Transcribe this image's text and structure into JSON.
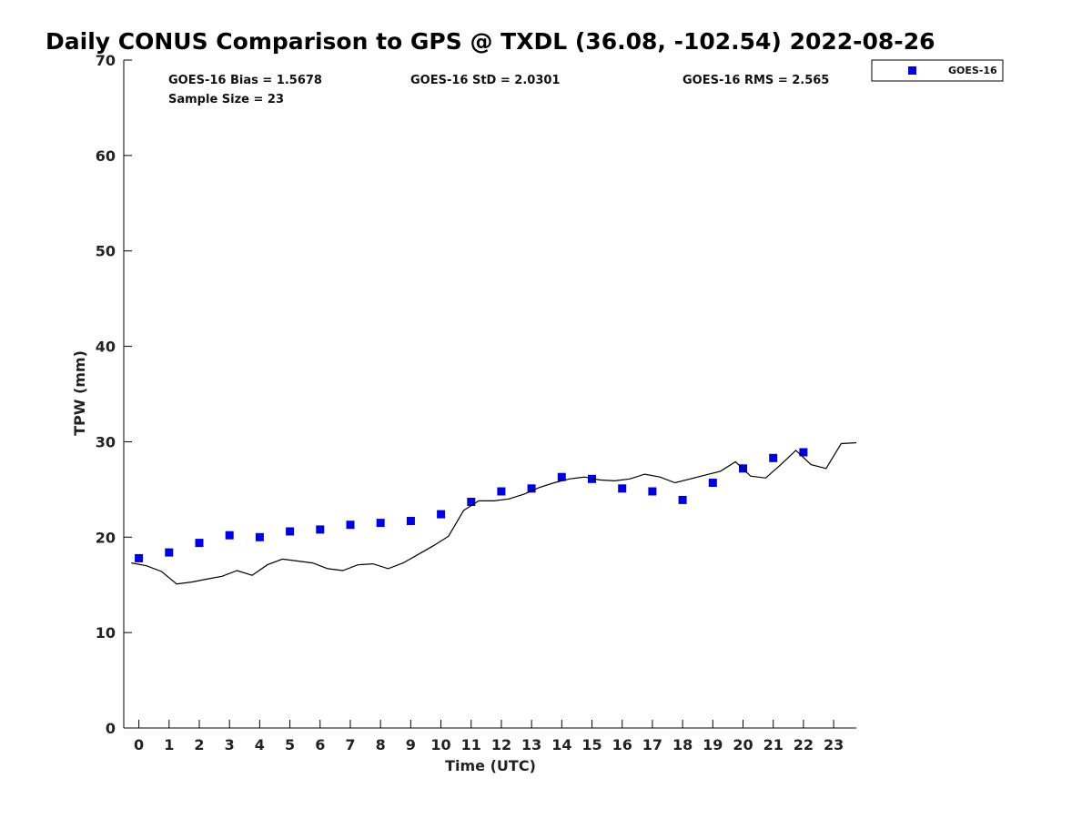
{
  "chart_data": {
    "type": "scatter",
    "title": "Daily CONUS Comparison to GPS @ TXDL (36.08, -102.54) 2022-08-26",
    "xlabel": "Time (UTC)",
    "ylabel": "TPW (mm)",
    "xlim": [
      -0.5,
      23.75
    ],
    "ylim": [
      0,
      70
    ],
    "xticks": [
      0,
      1,
      2,
      3,
      4,
      5,
      6,
      7,
      8,
      9,
      10,
      11,
      12,
      13,
      14,
      15,
      16,
      17,
      18,
      19,
      20,
      21,
      22,
      23
    ],
    "yticks": [
      0,
      10,
      20,
      30,
      40,
      50,
      60,
      70
    ],
    "grid": false,
    "legend_position": "top-right-outside",
    "stats": {
      "bias": "GOES-16 Bias = 1.5678",
      "std": "GOES-16 StD = 2.0301",
      "rms": "GOES-16 RMS = 2.565",
      "sample_size": "Sample Size = 23"
    },
    "series": [
      {
        "name": "GOES-16",
        "kind": "marker",
        "color": "#0000dd",
        "x": [
          0,
          1,
          2,
          3,
          4,
          5,
          6,
          7,
          8,
          9,
          10,
          11,
          12,
          13,
          14,
          15,
          16,
          17,
          18,
          19,
          20,
          21,
          22
        ],
        "y": [
          17.8,
          18.4,
          19.4,
          20.2,
          20.0,
          20.6,
          20.8,
          21.3,
          21.5,
          21.7,
          22.4,
          23.7,
          24.8,
          25.1,
          26.3,
          26.1,
          25.1,
          24.8,
          23.9,
          25.7,
          27.2,
          28.3,
          28.9
        ]
      },
      {
        "kind": "line",
        "color": "#000000",
        "x": [
          -0.25,
          0.25,
          0.75,
          1.25,
          1.75,
          2.25,
          2.75,
          3.25,
          3.75,
          4.25,
          4.75,
          5.25,
          5.75,
          6.25,
          6.75,
          7.25,
          7.75,
          8.25,
          8.75,
          9.25,
          9.75,
          10.25,
          10.75,
          11.25,
          11.75,
          12.25,
          12.75,
          13.25,
          13.75,
          14.25,
          14.75,
          15.25,
          15.75,
          16.25,
          16.75,
          17.25,
          17.75,
          18.25,
          18.75,
          19.25,
          19.75,
          20.25,
          20.75,
          21.25,
          21.75,
          22.25,
          22.75,
          23.25,
          23.75
        ],
        "y": [
          17.3,
          17.0,
          16.4,
          15.1,
          15.3,
          15.6,
          15.9,
          16.5,
          16.0,
          17.1,
          17.7,
          17.5,
          17.3,
          16.7,
          16.5,
          17.1,
          17.2,
          16.7,
          17.3,
          18.2,
          19.1,
          20.1,
          22.8,
          23.8,
          23.8,
          24.0,
          24.5,
          25.2,
          25.7,
          26.1,
          26.3,
          26.0,
          25.9,
          26.1,
          26.6,
          26.3,
          25.7,
          26.1,
          26.5,
          26.9,
          27.9,
          26.4,
          26.2,
          27.6,
          29.1,
          27.6,
          27.2,
          29.8,
          29.9
        ]
      }
    ]
  }
}
